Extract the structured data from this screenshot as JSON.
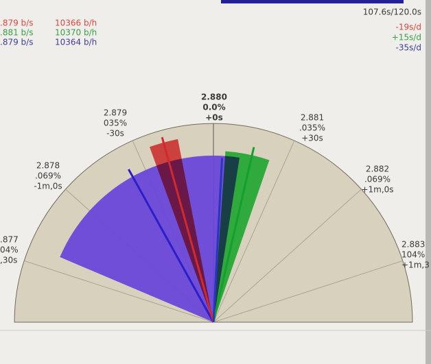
{
  "status": {
    "timing": "107.6s/120.0s"
  },
  "rates": [
    {
      "bps": ".879 b/s",
      "bph": "10366 b/h",
      "rate": "-19s/d"
    },
    {
      "bps": ".881 b/s",
      "bph": "10370 b/h",
      "rate": "+15s/d"
    },
    {
      "bps": ".879 b/s",
      "bph": "10364 b/h",
      "rate": "-35s/d"
    }
  ],
  "dial": {
    "labels": [
      {
        "beat": ".877",
        "pct": "04%",
        "offset": ",30s"
      },
      {
        "beat": "2.878",
        "pct": ".069%",
        "offset": "-1m,0s"
      },
      {
        "beat": "2.879",
        "pct": "035%",
        "offset": "-30s"
      },
      {
        "beat": "2.880",
        "pct": "0.0%",
        "offset": "+0s"
      },
      {
        "beat": "2.881",
        "pct": ".035%",
        "offset": "+30s"
      },
      {
        "beat": "2.882",
        "pct": ".069%",
        "offset": "+1m,0s"
      },
      {
        "beat": "2.883",
        "pct": "104%",
        "offset": "+1m,3"
      }
    ]
  }
}
